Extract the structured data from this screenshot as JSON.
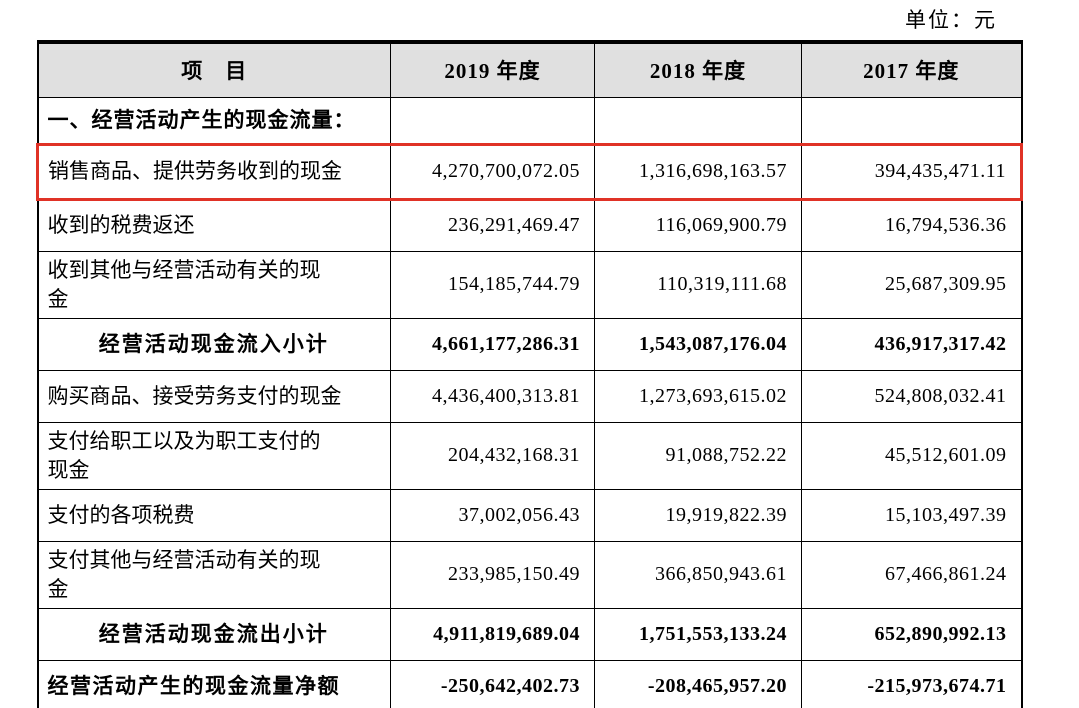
{
  "page": {
    "unit_label": "单位：元"
  },
  "colors": {
    "highlight_red": "#e03226",
    "header_bg": "#e0e0e0",
    "border": "#000000"
  },
  "table": {
    "columns": [
      "项　目",
      "2019 年度",
      "2018 年度",
      "2017 年度"
    ],
    "rows": [
      {
        "label": "一、经营活动产生的现金流量：",
        "values": [
          "",
          "",
          ""
        ],
        "style": "section",
        "highlighted": false
      },
      {
        "label": "销售商品、提供劳务收到的现金",
        "values": [
          "4,270,700,072.05",
          "1,316,698,163.57",
          "394,435,471.11"
        ],
        "style": "normal",
        "highlighted": true
      },
      {
        "label": "收到的税费返还",
        "values": [
          "236,291,469.47",
          "116,069,900.79",
          "16,794,536.36"
        ],
        "style": "normal",
        "highlighted": false
      },
      {
        "label": "收到其他与经营活动有关的现\n金",
        "values": [
          "154,185,744.79",
          "110,319,111.68",
          "25,687,309.95"
        ],
        "style": "normal",
        "highlighted": false
      },
      {
        "label": "经营活动现金流入小计",
        "values": [
          "4,661,177,286.31",
          "1,543,087,176.04",
          "436,917,317.42"
        ],
        "style": "subtotal",
        "highlighted": false
      },
      {
        "label": "购买商品、接受劳务支付的现金",
        "values": [
          "4,436,400,313.81",
          "1,273,693,615.02",
          "524,808,032.41"
        ],
        "style": "normal",
        "highlighted": false
      },
      {
        "label": "支付给职工以及为职工支付的\n现金",
        "values": [
          "204,432,168.31",
          "91,088,752.22",
          "45,512,601.09"
        ],
        "style": "normal",
        "highlighted": false
      },
      {
        "label": "支付的各项税费",
        "values": [
          "37,002,056.43",
          "19,919,822.39",
          "15,103,497.39"
        ],
        "style": "normal",
        "highlighted": false
      },
      {
        "label": "支付其他与经营活动有关的现\n金",
        "values": [
          "233,985,150.49",
          "366,850,943.61",
          "67,466,861.24"
        ],
        "style": "normal",
        "highlighted": false
      },
      {
        "label": "经营活动现金流出小计",
        "values": [
          "4,911,819,689.04",
          "1,751,553,133.24",
          "652,890,992.13"
        ],
        "style": "subtotal",
        "highlighted": false
      },
      {
        "label": "经营活动产生的现金流量净额",
        "values": [
          "-250,642,402.73",
          "-208,465,957.20",
          "-215,973,674.71"
        ],
        "style": "total",
        "highlighted": false
      }
    ]
  }
}
